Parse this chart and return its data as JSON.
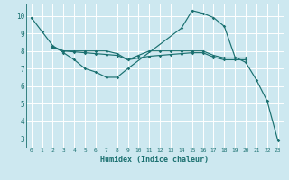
{
  "xlabel": "Humidex (Indice chaleur)",
  "bg_color": "#cde8f0",
  "grid_color": "#ffffff",
  "line_color": "#1a7070",
  "xlim": [
    -0.5,
    23.5
  ],
  "ylim": [
    2.5,
    10.7
  ],
  "xticks": [
    0,
    1,
    2,
    3,
    4,
    5,
    6,
    7,
    8,
    9,
    10,
    11,
    12,
    13,
    14,
    15,
    16,
    17,
    18,
    19,
    20,
    21,
    22,
    23
  ],
  "yticks": [
    3,
    4,
    5,
    6,
    7,
    8,
    9,
    10
  ],
  "series1": [
    [
      0,
      9.9
    ],
    [
      1,
      9.1
    ],
    [
      2,
      8.3
    ],
    [
      3,
      7.9
    ],
    [
      4,
      7.5
    ],
    [
      5,
      7.0
    ],
    [
      6,
      6.8
    ],
    [
      7,
      6.5
    ],
    [
      8,
      6.5
    ],
    [
      9,
      7.0
    ],
    [
      14,
      9.3
    ],
    [
      15,
      10.3
    ],
    [
      16,
      10.15
    ],
    [
      17,
      9.9
    ],
    [
      18,
      9.4
    ],
    [
      19,
      7.65
    ],
    [
      20,
      7.35
    ],
    [
      21,
      6.35
    ],
    [
      22,
      5.15
    ],
    [
      23,
      2.9
    ]
  ],
  "series2": [
    [
      2,
      8.25
    ],
    [
      3,
      8.0
    ],
    [
      4,
      8.0
    ],
    [
      5,
      8.0
    ],
    [
      6,
      8.0
    ],
    [
      7,
      8.0
    ],
    [
      8,
      7.85
    ],
    [
      9,
      7.5
    ],
    [
      10,
      7.75
    ],
    [
      11,
      8.0
    ],
    [
      12,
      8.0
    ],
    [
      13,
      8.0
    ],
    [
      14,
      8.0
    ],
    [
      15,
      8.0
    ],
    [
      16,
      8.0
    ],
    [
      17,
      7.75
    ],
    [
      18,
      7.6
    ],
    [
      19,
      7.6
    ],
    [
      20,
      7.6
    ]
  ],
  "series3": [
    [
      2,
      8.2
    ],
    [
      3,
      8.0
    ],
    [
      4,
      7.95
    ],
    [
      5,
      7.9
    ],
    [
      6,
      7.85
    ],
    [
      7,
      7.8
    ],
    [
      8,
      7.75
    ],
    [
      9,
      7.5
    ],
    [
      10,
      7.6
    ],
    [
      11,
      7.7
    ],
    [
      12,
      7.75
    ],
    [
      13,
      7.8
    ],
    [
      14,
      7.85
    ],
    [
      15,
      7.9
    ],
    [
      16,
      7.9
    ],
    [
      17,
      7.65
    ],
    [
      18,
      7.5
    ],
    [
      19,
      7.5
    ],
    [
      20,
      7.5
    ]
  ]
}
